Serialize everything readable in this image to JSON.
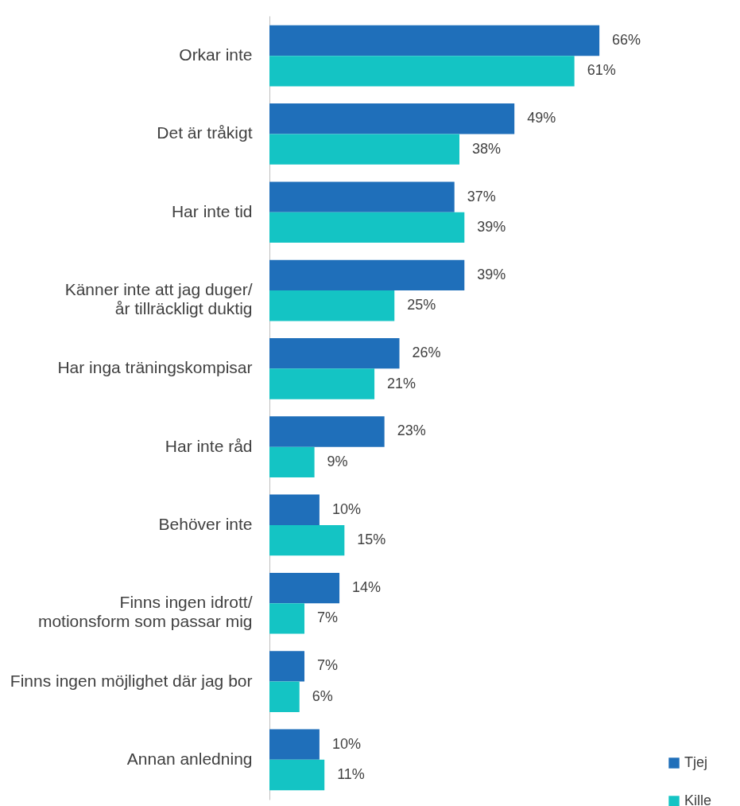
{
  "chart_data": {
    "type": "bar",
    "orientation": "horizontal",
    "categories": [
      "Orkar inte",
      "Det är tråkigt",
      "Har inte tid",
      "Känner inte att jag duger/\når tillräckligt duktig",
      "Har inga träningskompisar",
      "Har inte råd",
      "Behöver inte",
      "Finns ingen idrott/\nmotionsform som passar mig",
      "Finns ingen möjlighet där jag bor",
      "Annan anledning"
    ],
    "series": [
      {
        "name": "Tjej",
        "color": "#1f6fba",
        "values": [
          66,
          49,
          37,
          39,
          26,
          23,
          10,
          14,
          7,
          10
        ],
        "value_labels": [
          "66%",
          "49%",
          "37%",
          "39%",
          "26%",
          "23%",
          "10%",
          "14%",
          "7%",
          "10%"
        ]
      },
      {
        "name": "Kille",
        "color": "#14c4c4",
        "values": [
          61,
          38,
          39,
          25,
          21,
          9,
          15,
          7,
          6,
          11
        ],
        "value_labels": [
          "61%",
          "38%",
          "39%",
          "25%",
          "21%",
          "9%",
          "15%",
          "7%",
          "6%",
          "11%"
        ]
      }
    ],
    "legend": "bottom right",
    "grid": false
  }
}
